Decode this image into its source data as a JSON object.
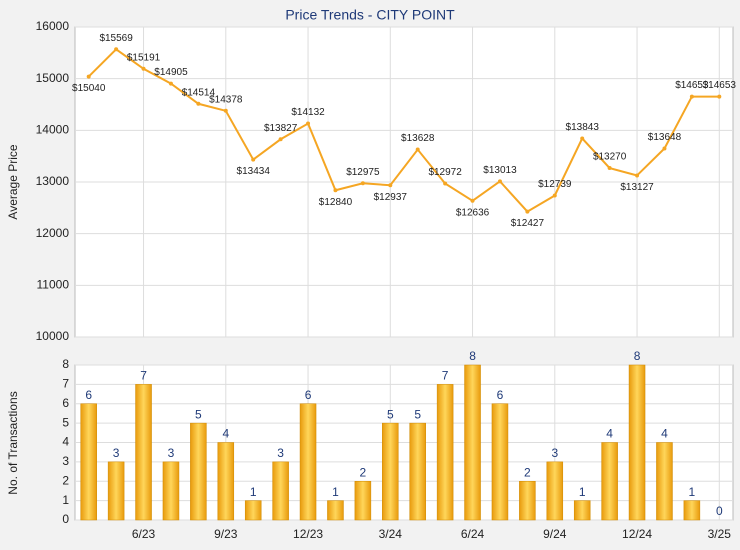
{
  "chart_data": [
    {
      "type": "line",
      "title": "Price Trends - CITY POINT",
      "y_label": "Average Price",
      "color": "#f5a623",
      "grid": true,
      "values": [
        15040,
        15569,
        15191,
        14905,
        14514,
        14378,
        13434,
        13827,
        14132,
        12840,
        12975,
        12937,
        13628,
        12972,
        12636,
        13013,
        12427,
        12739,
        13843,
        13270,
        13127,
        13648,
        14653,
        14653
      ],
      "value_labels": [
        "$15040",
        "$15569",
        "$15191",
        "$14905",
        "$14514",
        "$14378",
        "$13434",
        "$13827",
        "$14132",
        "$12840",
        "$12975",
        "$12937",
        "$13628",
        "$12972",
        "$12636",
        "$13013",
        "$12427",
        "$12739",
        "$13843",
        "$13270",
        "$13127",
        "$13648",
        "$14653",
        "$14653"
      ],
      "ylim": [
        10000,
        16000
      ],
      "yticks": [
        10000,
        11000,
        12000,
        13000,
        14000,
        15000,
        16000
      ]
    },
    {
      "type": "bar",
      "y_label": "No. of Transactions",
      "color": "#f5b21f",
      "grid": true,
      "categories": [
        null,
        null,
        "6/23",
        null,
        null,
        "9/23",
        null,
        null,
        "12/23",
        null,
        null,
        "3/24",
        null,
        null,
        "6/24",
        null,
        null,
        "9/24",
        null,
        null,
        "12/24",
        null,
        null,
        "3/25"
      ],
      "values": [
        6,
        3,
        7,
        3,
        5,
        4,
        1,
        3,
        6,
        1,
        2,
        5,
        5,
        7,
        8,
        6,
        2,
        3,
        1,
        4,
        8,
        4,
        1,
        0
      ],
      "ylim": [
        0,
        8
      ],
      "yticks": [
        0,
        1,
        2,
        3,
        4,
        5,
        6,
        7,
        8
      ]
    }
  ]
}
